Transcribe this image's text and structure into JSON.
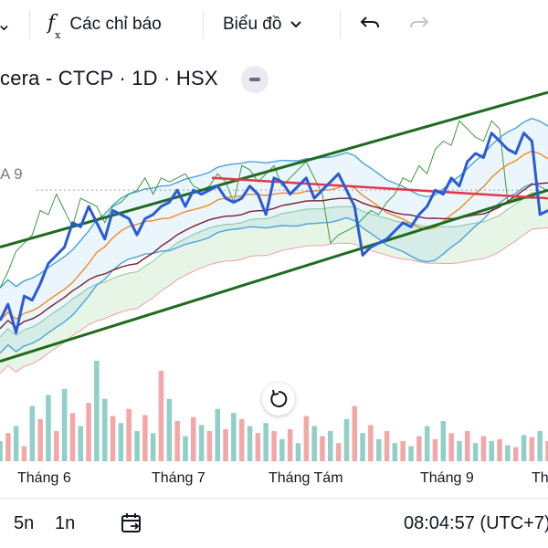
{
  "toolbar": {
    "indicators_label": "Các chỉ báo",
    "chart_type_label": "Biểu đồ"
  },
  "symbol": {
    "title": "cera - CTCP · 1D · HSX"
  },
  "indicator_label": "A 9",
  "time_axis": {
    "months": [
      "Tháng 6",
      "Tháng 7",
      "Tháng Tám",
      "Tháng 9",
      "Th"
    ]
  },
  "ranges": [
    "5n",
    "1n"
  ],
  "clock": "08:04:57 (UTC+7)",
  "icons": {
    "chevron": "chevron-down-icon",
    "indicators": "fx-icon",
    "undo": "undo-icon",
    "redo": "redo-icon",
    "collapse": "minus-icon",
    "reset": "reset-icon",
    "calendar": "calendar-range-icon"
  },
  "colors": {
    "price_line": "#2a5bd7",
    "green_channel": "#1e6b1e",
    "red_trendline": "#e03a4a",
    "volume_up": "#8fd0c8",
    "volume_down": "#f4a7a7"
  },
  "chart_data": {
    "type": "line",
    "title": "",
    "price_series": [
      56,
      60,
      53,
      62,
      61,
      65,
      70,
      72,
      74,
      80,
      79,
      84,
      80,
      76,
      83,
      82,
      81,
      77,
      81,
      82,
      84,
      85,
      88,
      84,
      88,
      87,
      88,
      89,
      86,
      85,
      86,
      89,
      87,
      82,
      91,
      90,
      87,
      89,
      91,
      86,
      88,
      90,
      92,
      88,
      84,
      72,
      74,
      75,
      76,
      78,
      80,
      79,
      82,
      84,
      88,
      87,
      91,
      89,
      95,
      97,
      96,
      102,
      100,
      98,
      97,
      102,
      100,
      82,
      83
    ],
    "volume": [
      {
        "v": 20,
        "up": true
      },
      {
        "v": 28,
        "up": false
      },
      {
        "v": 35,
        "up": true
      },
      {
        "v": 15,
        "up": false
      },
      {
        "v": 55,
        "up": true
      },
      {
        "v": 42,
        "up": false
      },
      {
        "v": 66,
        "up": true
      },
      {
        "v": 30,
        "up": false
      },
      {
        "v": 72,
        "up": true
      },
      {
        "v": 48,
        "up": false
      },
      {
        "v": 35,
        "up": true
      },
      {
        "v": 58,
        "up": false
      },
      {
        "v": 100,
        "up": true
      },
      {
        "v": 62,
        "up": true
      },
      {
        "v": 45,
        "up": false
      },
      {
        "v": 38,
        "up": true
      },
      {
        "v": 52,
        "up": false
      },
      {
        "v": 30,
        "up": true
      },
      {
        "v": 46,
        "up": false
      },
      {
        "v": 28,
        "up": true
      },
      {
        "v": 90,
        "up": false
      },
      {
        "v": 62,
        "up": true
      },
      {
        "v": 40,
        "up": false
      },
      {
        "v": 25,
        "up": true
      },
      {
        "v": 44,
        "up": false
      },
      {
        "v": 36,
        "up": true
      },
      {
        "v": 30,
        "up": false
      },
      {
        "v": 52,
        "up": true
      },
      {
        "v": 32,
        "up": false
      },
      {
        "v": 48,
        "up": true
      },
      {
        "v": 42,
        "up": false
      },
      {
        "v": 35,
        "up": true
      },
      {
        "v": 28,
        "up": false
      },
      {
        "v": 38,
        "up": true
      },
      {
        "v": 30,
        "up": false
      },
      {
        "v": 22,
        "up": true
      },
      {
        "v": 32,
        "up": false
      },
      {
        "v": 18,
        "up": true
      },
      {
        "v": 45,
        "up": false
      },
      {
        "v": 35,
        "up": true
      },
      {
        "v": 25,
        "up": false
      },
      {
        "v": 30,
        "up": true
      },
      {
        "v": 18,
        "up": false
      },
      {
        "v": 42,
        "up": true
      },
      {
        "v": 55,
        "up": false
      },
      {
        "v": 28,
        "up": true
      },
      {
        "v": 36,
        "up": false
      },
      {
        "v": 22,
        "up": true
      },
      {
        "v": 30,
        "up": false
      },
      {
        "v": 18,
        "up": true
      },
      {
        "v": 20,
        "up": false
      },
      {
        "v": 15,
        "up": true
      },
      {
        "v": 25,
        "up": false
      },
      {
        "v": 35,
        "up": true
      },
      {
        "v": 22,
        "up": false
      },
      {
        "v": 40,
        "up": true
      },
      {
        "v": 28,
        "up": false
      },
      {
        "v": 20,
        "up": true
      },
      {
        "v": 30,
        "up": false
      },
      {
        "v": 18,
        "up": true
      },
      {
        "v": 25,
        "up": false
      },
      {
        "v": 20,
        "up": true
      },
      {
        "v": 22,
        "up": false
      },
      {
        "v": 16,
        "up": true
      },
      {
        "v": 14,
        "up": false
      },
      {
        "v": 26,
        "up": true
      },
      {
        "v": 24,
        "up": false
      },
      {
        "v": 30,
        "up": true
      },
      {
        "v": 20,
        "up": false
      }
    ]
  }
}
